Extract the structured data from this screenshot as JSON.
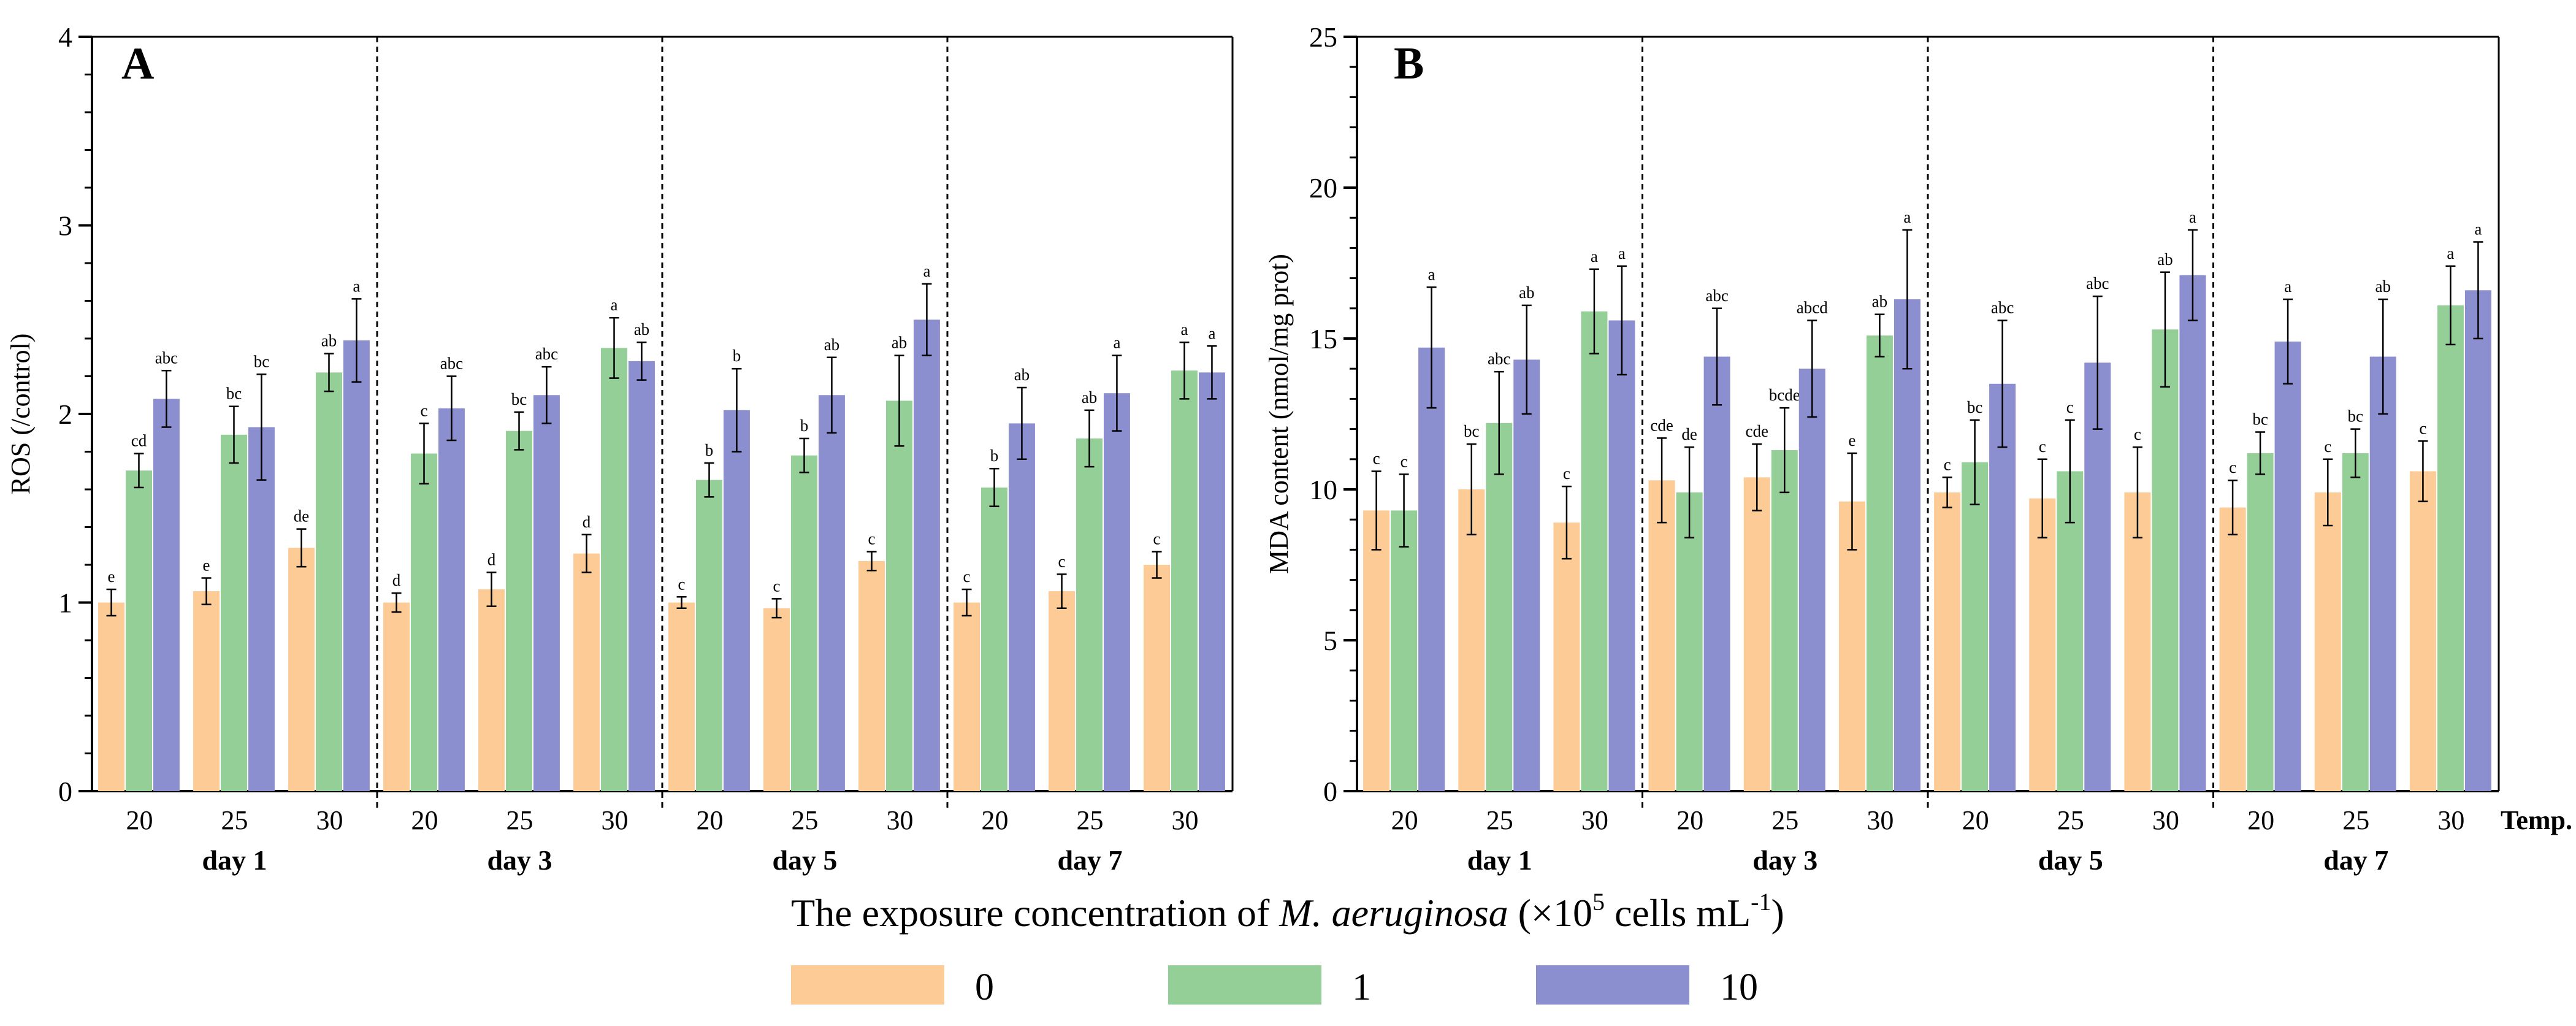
{
  "figure": {
    "shared_xlabel_prefix": "The exposure concentration of ",
    "shared_xlabel_species": "M. aeruginosa",
    "shared_xlabel_unit_open": " (×10",
    "shared_xlabel_unit_exp1": "5",
    "shared_xlabel_unit_mid": " cells mL",
    "shared_xlabel_unit_exp2": "-1",
    "shared_xlabel_unit_close": ")",
    "colors": {
      "0": "#FDCB95",
      "1": "#93CF97",
      "10": "#8C8FCF"
    },
    "legend": [
      {
        "label": "0",
        "color": "#FDCB95"
      },
      {
        "label": "1",
        "color": "#93CF97"
      },
      {
        "label": "10",
        "color": "#8C8FCF"
      }
    ]
  },
  "chart_data": [
    {
      "type": "bar",
      "panel": "A",
      "title": "",
      "xlabel": "",
      "ylabel": "ROS (/control)",
      "ylim": [
        0,
        4
      ],
      "yticks": [
        "0",
        "1",
        "2",
        "3",
        "4"
      ],
      "groups": [
        "day 1",
        "day 3",
        "day 5",
        "day 7"
      ],
      "categories": [
        "20",
        "25",
        "30"
      ],
      "temp_label": "",
      "series": [
        {
          "name": "0",
          "values": [
            [
              1.0,
              1.06,
              1.29
            ],
            [
              1.0,
              1.07,
              1.26
            ],
            [
              1.0,
              0.97,
              1.22
            ],
            [
              1.0,
              1.06,
              1.2
            ]
          ],
          "errors": [
            [
              0.07,
              0.07,
              0.1
            ],
            [
              0.05,
              0.09,
              0.1
            ],
            [
              0.03,
              0.05,
              0.05
            ],
            [
              0.07,
              0.09,
              0.07
            ]
          ],
          "letters": [
            [
              "e",
              "e",
              "de"
            ],
            [
              "d",
              "d",
              "d"
            ],
            [
              "c",
              "c",
              "c"
            ],
            [
              "c",
              "c",
              "c"
            ]
          ]
        },
        {
          "name": "1",
          "values": [
            [
              1.7,
              1.89,
              2.22
            ],
            [
              1.79,
              1.91,
              2.35
            ],
            [
              1.65,
              1.78,
              2.07
            ],
            [
              1.61,
              1.87,
              2.23
            ]
          ],
          "errors": [
            [
              0.09,
              0.15,
              0.1
            ],
            [
              0.16,
              0.1,
              0.16
            ],
            [
              0.09,
              0.09,
              0.24
            ],
            [
              0.1,
              0.15,
              0.15
            ]
          ],
          "letters": [
            [
              "cd",
              "bc",
              "ab"
            ],
            [
              "c",
              "bc",
              "a"
            ],
            [
              "b",
              "b",
              "ab"
            ],
            [
              "b",
              "ab",
              "a"
            ]
          ]
        },
        {
          "name": "10",
          "values": [
            [
              2.08,
              1.93,
              2.39
            ],
            [
              2.03,
              2.1,
              2.28
            ],
            [
              2.02,
              2.1,
              2.5
            ],
            [
              1.95,
              2.11,
              2.22
            ]
          ],
          "errors": [
            [
              0.15,
              0.28,
              0.22
            ],
            [
              0.17,
              0.15,
              0.1
            ],
            [
              0.22,
              0.2,
              0.19
            ],
            [
              0.19,
              0.2,
              0.14
            ]
          ],
          "letters": [
            [
              "abc",
              "bc",
              "a"
            ],
            [
              "abc",
              "abc",
              "ab"
            ],
            [
              "b",
              "ab",
              "a"
            ],
            [
              "ab",
              "a",
              "a"
            ]
          ]
        }
      ]
    },
    {
      "type": "bar",
      "panel": "B",
      "title": "",
      "xlabel": "",
      "ylabel": "MDA content (nmol/mg prot)",
      "ylim": [
        0,
        25
      ],
      "yticks": [
        "0",
        "5",
        "10",
        "15",
        "20",
        "25"
      ],
      "groups": [
        "day 1",
        "day 3",
        "day 5",
        "day 7"
      ],
      "categories": [
        "20",
        "25",
        "30"
      ],
      "temp_label": "Temp.",
      "series": [
        {
          "name": "0",
          "values": [
            [
              9.3,
              10.0,
              8.9
            ],
            [
              10.3,
              10.4,
              9.6
            ],
            [
              9.9,
              9.7,
              9.9
            ],
            [
              9.4,
              9.9,
              10.6
            ]
          ],
          "errors": [
            [
              1.3,
              1.5,
              1.2
            ],
            [
              1.4,
              1.1,
              1.6
            ],
            [
              0.5,
              1.3,
              1.5
            ],
            [
              0.9,
              1.1,
              1.0
            ]
          ],
          "letters": [
            [
              "c",
              "bc",
              "c"
            ],
            [
              "cde",
              "cde",
              "e"
            ],
            [
              "c",
              "c",
              "c"
            ],
            [
              "c",
              "c",
              "c"
            ]
          ]
        },
        {
          "name": "1",
          "values": [
            [
              9.3,
              12.2,
              15.9
            ],
            [
              9.9,
              11.3,
              15.1
            ],
            [
              10.9,
              10.6,
              15.3
            ],
            [
              11.2,
              11.2,
              16.1
            ]
          ],
          "errors": [
            [
              1.2,
              1.7,
              1.4
            ],
            [
              1.5,
              1.4,
              0.7
            ],
            [
              1.4,
              1.7,
              1.9
            ],
            [
              0.7,
              0.8,
              1.3
            ]
          ],
          "letters": [
            [
              "c",
              "abc",
              "a"
            ],
            [
              "de",
              "bcde",
              "ab"
            ],
            [
              "bc",
              "c",
              "ab"
            ],
            [
              "bc",
              "bc",
              "a"
            ]
          ]
        },
        {
          "name": "10",
          "values": [
            [
              14.7,
              14.3,
              15.6
            ],
            [
              14.4,
              14.0,
              16.3
            ],
            [
              13.5,
              14.2,
              17.1
            ],
            [
              14.9,
              14.4,
              16.6
            ]
          ],
          "errors": [
            [
              2.0,
              1.8,
              1.8
            ],
            [
              1.6,
              1.6,
              2.3
            ],
            [
              2.1,
              2.2,
              1.5
            ],
            [
              1.4,
              1.9,
              1.6
            ]
          ],
          "letters": [
            [
              "a",
              "ab",
              "a"
            ],
            [
              "abc",
              "abcd",
              "a"
            ],
            [
              "abc",
              "abc",
              "a"
            ],
            [
              "a",
              "ab",
              "a"
            ]
          ]
        }
      ]
    }
  ]
}
